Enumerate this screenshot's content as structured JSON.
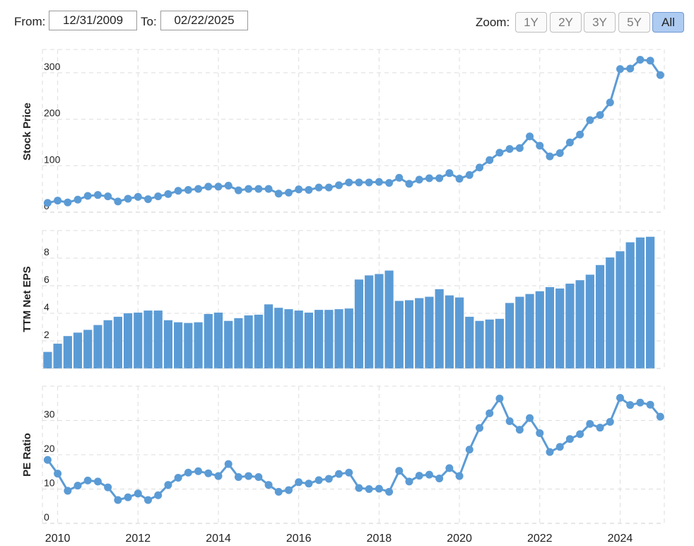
{
  "range": {
    "from_label": "From:",
    "from_value": "12/31/2009",
    "to_label": "To:",
    "to_value": "02/22/2025"
  },
  "zoom": {
    "label": "Zoom:",
    "buttons": [
      "1Y",
      "2Y",
      "3Y",
      "5Y",
      "All"
    ],
    "active": "All"
  },
  "colors": {
    "series": "#5b9bd5",
    "grid": "#dddddd"
  },
  "chart_data": [
    {
      "type": "line",
      "ylabel": "Stock Price",
      "ylim": [
        0,
        350
      ],
      "yticks": [
        0,
        100,
        200,
        300
      ],
      "xticks": [
        2010,
        2012,
        2014,
        2016,
        2018,
        2020,
        2022,
        2024
      ],
      "x": [
        2009.75,
        2010.0,
        2010.25,
        2010.5,
        2010.75,
        2011.0,
        2011.25,
        2011.5,
        2011.75,
        2012.0,
        2012.25,
        2012.5,
        2012.75,
        2013.0,
        2013.25,
        2013.5,
        2013.75,
        2014.0,
        2014.25,
        2014.5,
        2014.75,
        2015.0,
        2015.25,
        2015.5,
        2015.75,
        2016.0,
        2016.25,
        2016.5,
        2016.75,
        2017.0,
        2017.25,
        2017.5,
        2017.75,
        2018.0,
        2018.25,
        2018.5,
        2018.75,
        2019.0,
        2019.25,
        2019.5,
        2019.75,
        2020.0,
        2020.25,
        2020.5,
        2020.75,
        2021.0,
        2021.25,
        2021.5,
        2021.75,
        2022.0,
        2022.25,
        2022.5,
        2022.75,
        2023.0,
        2023.25,
        2023.5,
        2023.75,
        2024.0,
        2024.25,
        2024.5,
        2024.75,
        2025.0
      ],
      "values": [
        20,
        25,
        21,
        27,
        35,
        37,
        34,
        23,
        29,
        33,
        28,
        34,
        39,
        46,
        48,
        50,
        55,
        55,
        57,
        47,
        50,
        50,
        50,
        40,
        42,
        49,
        48,
        53,
        53,
        58,
        64,
        64,
        64,
        65,
        63,
        74,
        61,
        70,
        73,
        73,
        84,
        72,
        80,
        96,
        112,
        128,
        136,
        138,
        163,
        143,
        120,
        127,
        150,
        167,
        198,
        209,
        236,
        308,
        309,
        328,
        326,
        295
      ]
    },
    {
      "type": "bar",
      "ylabel": "TTM Net EPS",
      "ylim": [
        0,
        10
      ],
      "yticks": [
        0,
        2,
        4,
        6,
        8
      ],
      "xticks": [
        2010,
        2012,
        2014,
        2016,
        2018,
        2020,
        2022,
        2024
      ],
      "x": [
        2009.75,
        2010.0,
        2010.25,
        2010.5,
        2010.75,
        2011.0,
        2011.25,
        2011.5,
        2011.75,
        2012.0,
        2012.25,
        2012.5,
        2012.75,
        2013.0,
        2013.25,
        2013.5,
        2013.75,
        2014.0,
        2014.25,
        2014.5,
        2014.75,
        2015.0,
        2015.25,
        2015.5,
        2015.75,
        2016.0,
        2016.25,
        2016.5,
        2016.75,
        2017.0,
        2017.25,
        2017.5,
        2017.75,
        2018.0,
        2018.25,
        2018.5,
        2018.75,
        2019.0,
        2019.25,
        2019.5,
        2019.75,
        2020.0,
        2020.25,
        2020.5,
        2020.75,
        2021.0,
        2021.25,
        2021.5,
        2021.75,
        2022.0,
        2022.25,
        2022.5,
        2022.75,
        2023.0,
        2023.25,
        2023.5,
        2023.75,
        2024.0,
        2024.25,
        2024.5,
        2024.75
      ],
      "values": [
        1.2,
        1.8,
        2.35,
        2.6,
        2.8,
        3.15,
        3.5,
        3.75,
        4.0,
        4.05,
        4.2,
        4.2,
        3.5,
        3.35,
        3.3,
        3.35,
        3.95,
        4.05,
        3.45,
        3.65,
        3.85,
        3.9,
        4.65,
        4.4,
        4.3,
        4.2,
        4.05,
        4.25,
        4.25,
        4.3,
        4.35,
        6.45,
        6.75,
        6.85,
        7.1,
        4.9,
        4.95,
        5.1,
        5.2,
        5.75,
        5.3,
        5.15,
        3.75,
        3.45,
        3.55,
        3.6,
        4.75,
        5.2,
        5.4,
        5.6,
        5.9,
        5.8,
        6.15,
        6.4,
        6.8,
        7.5,
        8.05,
        8.5,
        9.15,
        9.5,
        9.55
      ]
    },
    {
      "type": "line",
      "ylabel": "PE Ratio",
      "ylim": [
        0,
        40
      ],
      "yticks": [
        0,
        10,
        20,
        30
      ],
      "xticks": [
        2010,
        2012,
        2014,
        2016,
        2018,
        2020,
        2022,
        2024
      ],
      "x": [
        2009.75,
        2010.0,
        2010.25,
        2010.5,
        2010.75,
        2011.0,
        2011.25,
        2011.5,
        2011.75,
        2012.0,
        2012.25,
        2012.5,
        2012.75,
        2013.0,
        2013.25,
        2013.5,
        2013.75,
        2014.0,
        2014.25,
        2014.5,
        2014.75,
        2015.0,
        2015.25,
        2015.5,
        2015.75,
        2016.0,
        2016.25,
        2016.5,
        2016.75,
        2017.0,
        2017.25,
        2017.5,
        2017.75,
        2018.0,
        2018.25,
        2018.5,
        2018.75,
        2019.0,
        2019.25,
        2019.5,
        2019.75,
        2020.0,
        2020.25,
        2020.5,
        2020.75,
        2021.0,
        2021.25,
        2021.5,
        2021.75,
        2022.0,
        2022.25,
        2022.5,
        2022.75,
        2023.0,
        2023.25,
        2023.5,
        2023.75,
        2024.0,
        2024.25,
        2024.5,
        2024.75,
        2025.0
      ],
      "values": [
        18.5,
        14.5,
        9.5,
        11,
        12.5,
        12.2,
        10.5,
        6.8,
        7.6,
        8.7,
        6.8,
        8.2,
        11.2,
        13.3,
        14.8,
        15.2,
        14.6,
        13.8,
        17.3,
        13.5,
        13.8,
        13.5,
        11.2,
        9.2,
        9.7,
        12,
        11.6,
        12.6,
        13,
        14.4,
        14.8,
        10.3,
        10,
        10.1,
        9.2,
        15.3,
        12.2,
        13.9,
        14.2,
        13.1,
        16.1,
        13.8,
        21.5,
        27.8,
        32.1,
        36.4,
        29.8,
        27.3,
        30.7,
        26.3,
        20.8,
        22.3,
        24.6,
        26,
        29,
        27.9,
        29.6,
        36.6,
        34.5,
        35.2,
        34.6,
        31.1
      ]
    }
  ]
}
